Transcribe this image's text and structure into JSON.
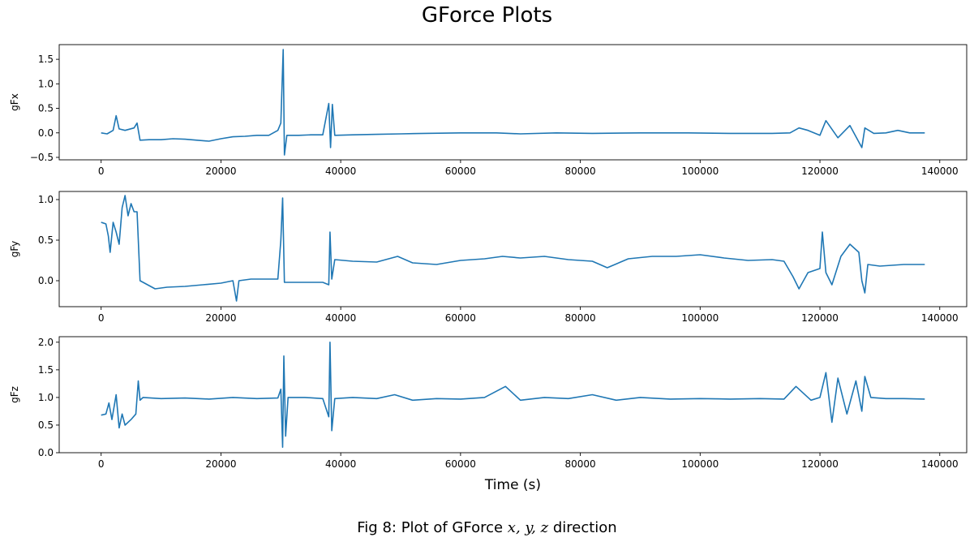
{
  "figure": {
    "title": "GForce Plots",
    "caption_prefix": "Fig 8: Plot of GForce ",
    "caption_vars": "x, y, z",
    "caption_suffix": " direction"
  },
  "chart_data": [
    {
      "type": "line",
      "ylabel": "gFx",
      "xlabel": "",
      "color": "#1f77b4",
      "xlim": [
        -7000,
        144500
      ],
      "ylim": [
        -0.55,
        1.8
      ],
      "xticks": [
        0,
        20000,
        40000,
        60000,
        80000,
        100000,
        120000,
        140000
      ],
      "yticks": [
        -0.5,
        0.0,
        0.5,
        1.0,
        1.5
      ],
      "ytick_labels": [
        "−0.5",
        "0.0",
        "0.5",
        "1.0",
        "1.5"
      ],
      "series": [
        {
          "x": [
            0,
            1000,
            2000,
            2500,
            3000,
            4000,
            5500,
            6000,
            6500,
            8000,
            10000,
            12000,
            14000,
            16000,
            18000,
            20000,
            22000,
            24000,
            26000,
            28000,
            29500,
            30000,
            30400,
            30600,
            31000,
            33000,
            35000,
            37000,
            38000,
            38300,
            38600,
            39000,
            42000,
            46000,
            50000,
            54000,
            60000,
            66000,
            70000,
            76000,
            82000,
            90000,
            98000,
            105000,
            112000,
            115000,
            116500,
            118000,
            120000,
            121000,
            123000,
            125000,
            127000,
            127500,
            129000,
            131000,
            133000,
            135000,
            137500
          ],
          "y": [
            0.0,
            -0.02,
            0.05,
            0.35,
            0.08,
            0.05,
            0.1,
            0.2,
            -0.15,
            -0.14,
            -0.14,
            -0.12,
            -0.13,
            -0.15,
            -0.17,
            -0.12,
            -0.08,
            -0.07,
            -0.05,
            -0.05,
            0.05,
            0.2,
            1.7,
            -0.45,
            -0.05,
            -0.05,
            -0.04,
            -0.04,
            0.6,
            -0.3,
            0.58,
            -0.05,
            -0.04,
            -0.03,
            -0.02,
            -0.01,
            0.0,
            0.0,
            -0.02,
            0.0,
            -0.01,
            0.0,
            0.0,
            -0.01,
            -0.01,
            0.0,
            0.1,
            0.05,
            -0.05,
            0.25,
            -0.1,
            0.15,
            -0.3,
            0.1,
            -0.01,
            0.0,
            0.05,
            0.0,
            0.0
          ]
        }
      ]
    },
    {
      "type": "line",
      "ylabel": "gFy",
      "xlabel": "",
      "color": "#1f77b4",
      "xlim": [
        -7000,
        144500
      ],
      "ylim": [
        -0.32,
        1.1
      ],
      "xticks": [
        0,
        20000,
        40000,
        60000,
        80000,
        100000,
        120000,
        140000
      ],
      "yticks": [
        0.0,
        0.5,
        1.0
      ],
      "ytick_labels": [
        "0.0",
        "0.5",
        "1.0"
      ],
      "series": [
        {
          "x": [
            0,
            800,
            1200,
            1500,
            2000,
            2500,
            3000,
            3500,
            4000,
            4500,
            5000,
            5500,
            6000,
            6500,
            7000,
            9000,
            11000,
            14000,
            17000,
            20000,
            22000,
            22600,
            23000,
            25000,
            28000,
            29500,
            30000,
            30300,
            30600,
            31000,
            34000,
            37000,
            38000,
            38200,
            38500,
            39000,
            42000,
            46000,
            49500,
            52000,
            56000,
            60000,
            64000,
            67000,
            70000,
            74000,
            78000,
            82000,
            84500,
            88000,
            92000,
            96000,
            100000,
            104000,
            108000,
            112000,
            114000,
            115500,
            116500,
            118000,
            120000,
            120400,
            121000,
            122000,
            123500,
            125000,
            126500,
            127000,
            127500,
            128000,
            130000,
            134000,
            137500
          ],
          "y": [
            0.72,
            0.7,
            0.55,
            0.35,
            0.72,
            0.6,
            0.45,
            0.9,
            1.05,
            0.8,
            0.95,
            0.85,
            0.85,
            0.0,
            -0.02,
            -0.1,
            -0.08,
            -0.07,
            -0.05,
            -0.03,
            0.0,
            -0.25,
            0.0,
            0.02,
            0.02,
            0.02,
            0.5,
            1.02,
            -0.02,
            -0.02,
            -0.02,
            -0.02,
            -0.05,
            0.6,
            0.02,
            0.26,
            0.24,
            0.23,
            0.3,
            0.22,
            0.2,
            0.25,
            0.27,
            0.3,
            0.28,
            0.3,
            0.26,
            0.24,
            0.16,
            0.27,
            0.3,
            0.3,
            0.32,
            0.28,
            0.25,
            0.26,
            0.24,
            0.05,
            -0.1,
            0.1,
            0.15,
            0.6,
            0.1,
            -0.05,
            0.3,
            0.45,
            0.35,
            0.0,
            -0.15,
            0.2,
            0.18,
            0.2,
            0.2
          ]
        }
      ]
    },
    {
      "type": "line",
      "ylabel": "gFz",
      "xlabel": "Time (s)",
      "color": "#1f77b4",
      "xlim": [
        -7000,
        144500
      ],
      "ylim": [
        0.0,
        2.1
      ],
      "xticks": [
        0,
        20000,
        40000,
        60000,
        80000,
        100000,
        120000,
        140000
      ],
      "yticks": [
        0.0,
        0.5,
        1.0,
        1.5,
        2.0
      ],
      "ytick_labels": [
        "0.0",
        "0.5",
        "1.0",
        "1.5",
        "2.0"
      ],
      "series": [
        {
          "x": [
            0,
            800,
            1300,
            1800,
            2500,
            3000,
            3500,
            4000,
            5000,
            5800,
            6200,
            6500,
            7000,
            10000,
            14000,
            18000,
            22000,
            26000,
            29500,
            30000,
            30300,
            30500,
            30800,
            31200,
            34000,
            37000,
            38000,
            38200,
            38500,
            39000,
            42000,
            46000,
            49000,
            52000,
            56000,
            60000,
            64000,
            67500,
            70000,
            74000,
            78000,
            82000,
            86000,
            90000,
            95000,
            100000,
            105000,
            110000,
            114000,
            116000,
            118500,
            120000,
            121000,
            122000,
            123000,
            124500,
            126000,
            127000,
            127500,
            128500,
            131000,
            134000,
            137500
          ],
          "y": [
            0.68,
            0.7,
            0.9,
            0.6,
            1.05,
            0.45,
            0.7,
            0.5,
            0.6,
            0.7,
            1.3,
            0.95,
            1.0,
            0.98,
            0.99,
            0.97,
            1.0,
            0.98,
            0.99,
            1.15,
            0.1,
            1.75,
            0.3,
            1.0,
            1.0,
            0.98,
            0.65,
            2.0,
            0.4,
            0.98,
            1.0,
            0.98,
            1.05,
            0.95,
            0.98,
            0.97,
            1.0,
            1.2,
            0.95,
            1.0,
            0.98,
            1.05,
            0.95,
            1.0,
            0.97,
            0.98,
            0.97,
            0.98,
            0.97,
            1.2,
            0.95,
            1.0,
            1.45,
            0.55,
            1.35,
            0.7,
            1.3,
            0.75,
            1.38,
            1.0,
            0.98,
            0.98,
            0.97
          ]
        }
      ]
    }
  ]
}
